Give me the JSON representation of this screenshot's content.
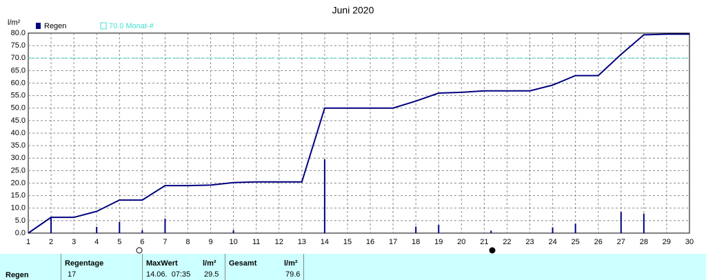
{
  "chart_data": {
    "type": "line",
    "title": "Juni 2020",
    "y_label": "l/m²",
    "xlim": [
      1,
      30
    ],
    "xticks": [
      1,
      2,
      3,
      4,
      5,
      6,
      7,
      8,
      9,
      10,
      11,
      12,
      13,
      14,
      15,
      16,
      17,
      18,
      19,
      20,
      21,
      22,
      23,
      24,
      25,
      26,
      27,
      28,
      29,
      30
    ],
    "ylim": [
      0,
      80
    ],
    "yticks": [
      {
        "value": 0,
        "label": "0.0"
      },
      {
        "value": 5,
        "label": "5.0"
      },
      {
        "value": 10,
        "label": "10.0"
      },
      {
        "value": 15,
        "label": "15.0"
      },
      {
        "value": 20,
        "label": "20.0"
      },
      {
        "value": 25,
        "label": "25.0"
      },
      {
        "value": 30,
        "label": "30.0"
      },
      {
        "value": 35,
        "label": "35.0"
      },
      {
        "value": 40,
        "label": "40.0"
      },
      {
        "value": 45,
        "label": "45.0"
      },
      {
        "value": 50,
        "label": "50.0"
      },
      {
        "value": 55,
        "label": "55.0"
      },
      {
        "value": 60,
        "label": "60.0"
      },
      {
        "value": 65,
        "label": "65.0"
      },
      {
        "value": 70,
        "label": "70.0"
      },
      {
        "value": 75,
        "label": "75.0"
      },
      {
        "value": 80,
        "label": "80.0"
      }
    ],
    "grid": true,
    "reference": {
      "label": "70.0 Monat-#",
      "value": 70,
      "color": "#40e0d0"
    },
    "series": [
      {
        "name": "Regen",
        "type": "bar",
        "color": "#000080",
        "x": [
          2,
          4,
          5,
          6,
          7,
          10,
          14,
          18,
          19,
          21.3,
          24,
          25,
          27,
          28
        ],
        "values": [
          6.0,
          2.5,
          4.5,
          1.2,
          5.8,
          1.2,
          29.5,
          2.6,
          3.3,
          1.0,
          2.3,
          3.8,
          8.5,
          7.8
        ]
      },
      {
        "type": "line",
        "color": "#000080",
        "x": [
          1,
          2,
          3,
          4,
          5,
          6,
          7,
          8,
          9,
          10,
          11,
          12,
          13,
          14,
          15,
          16,
          17,
          18,
          19,
          20,
          21,
          22,
          23,
          24,
          25,
          26,
          27,
          28,
          29,
          30
        ],
        "values": [
          0,
          6.3,
          6.3,
          8.7,
          13.2,
          13.2,
          19,
          19,
          19.2,
          20.2,
          20.5,
          20.5,
          20.5,
          50,
          50,
          50,
          50,
          52.8,
          56,
          56.3,
          56.9,
          56.9,
          56.9,
          59.2,
          63,
          63,
          71.5,
          79.3,
          79.6,
          79.6
        ]
      }
    ]
  },
  "table": {
    "headers": [
      "Regentage",
      "MaxWert",
      "l/m²",
      "Gesamt",
      "l/m²"
    ],
    "rows": [
      [
        "Regen",
        "17",
        "14.06.  07:35",
        "29.5",
        "79.6"
      ]
    ]
  }
}
